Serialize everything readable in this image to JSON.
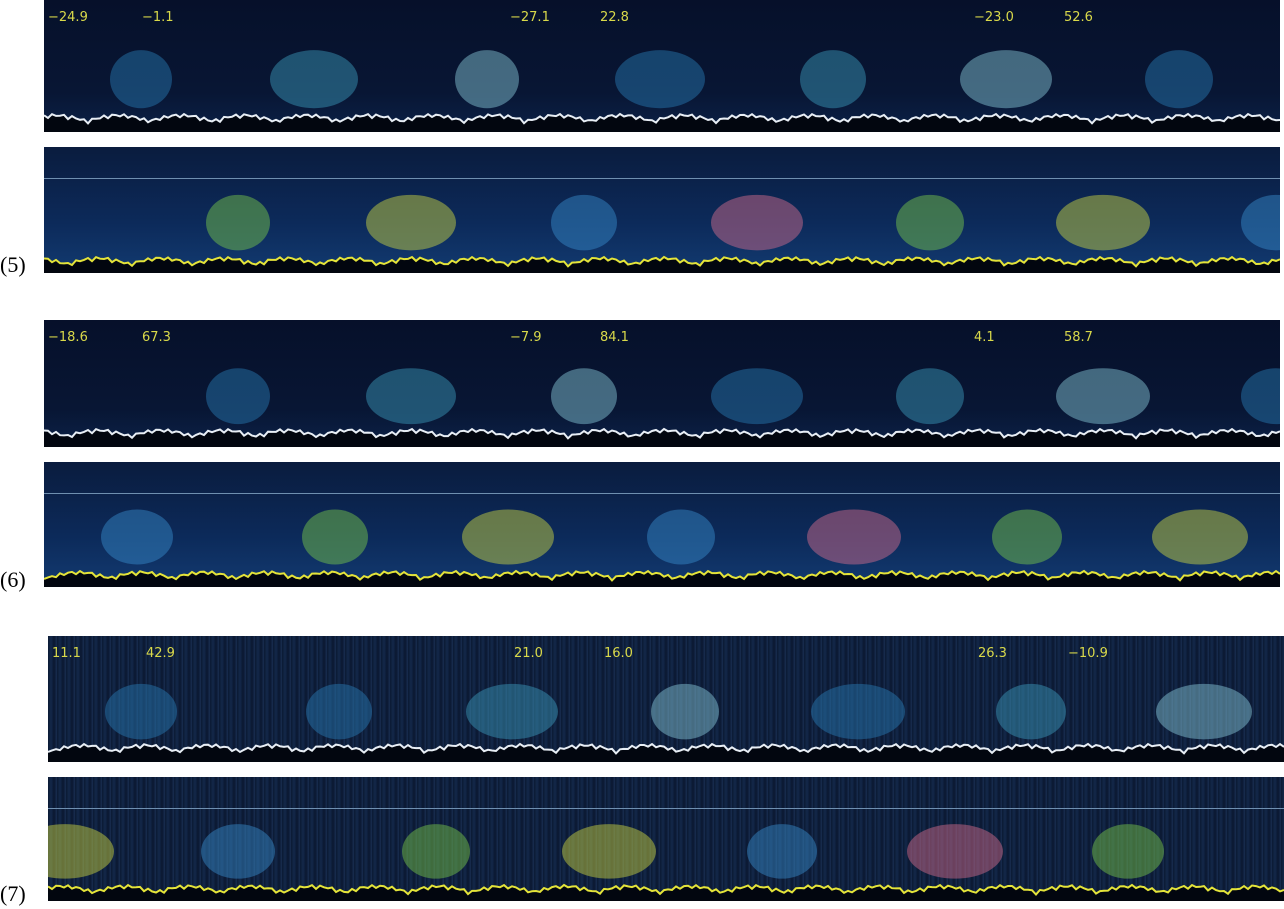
{
  "panels": [
    {
      "label": "(5)",
      "annotations": [
        "−24.9",
        "−1.1",
        "−27.1",
        "22.8",
        "−23.0",
        "52.6"
      ]
    },
    {
      "label": "(6)",
      "annotations": [
        "−18.6",
        "67.3",
        "−7.9",
        "84.1",
        "4.1",
        "58.7"
      ]
    },
    {
      "label": "(7)",
      "annotations": [
        "11.1",
        "42.9",
        "21.0",
        "16.0",
        "26.3",
        "−10.9"
      ]
    }
  ]
}
